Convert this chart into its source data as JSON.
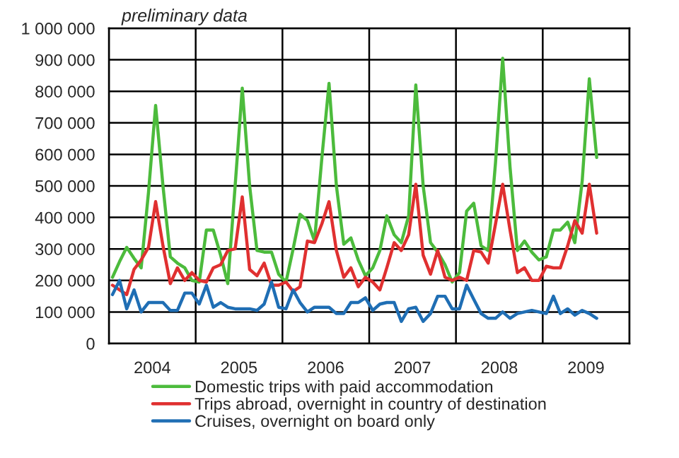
{
  "chart_data": {
    "type": "line",
    "annotations": [
      "preliminary data"
    ],
    "x": [
      "2004-01-16",
      "2004-02-15",
      "2004-03-16",
      "2004-04-16",
      "2004-05-16",
      "2004-06-16",
      "2004-07-16",
      "2004-08-16",
      "2004-09-16",
      "2004-10-16",
      "2004-11-16",
      "2004-12-16",
      "2005-01-16",
      "2005-02-15",
      "2005-03-16",
      "2005-04-16",
      "2005-05-16",
      "2005-06-16",
      "2005-07-16",
      "2005-08-16",
      "2005-09-16",
      "2005-10-16",
      "2005-11-16",
      "2005-12-16",
      "2006-01-16",
      "2006-02-15",
      "2006-03-16",
      "2006-04-16",
      "2006-05-16",
      "2006-06-16",
      "2006-07-16",
      "2006-08-16",
      "2006-09-16",
      "2006-10-16",
      "2006-11-16",
      "2006-12-16",
      "2007-01-16",
      "2007-02-15",
      "2007-03-16",
      "2007-04-16",
      "2007-05-16",
      "2007-06-16",
      "2007-07-16",
      "2007-08-16",
      "2007-09-16",
      "2007-10-16",
      "2007-11-16",
      "2007-12-16",
      "2008-01-16",
      "2008-02-15",
      "2008-03-16",
      "2008-04-16",
      "2008-05-16",
      "2008-06-16",
      "2008-07-16",
      "2008-08-16",
      "2008-09-16",
      "2008-10-16",
      "2008-11-16",
      "2008-12-16",
      "2009-01-16",
      "2009-02-15",
      "2009-03-16",
      "2009-04-16",
      "2009-05-16",
      "2009-06-16",
      "2009-07-16",
      "2009-08-16"
    ],
    "series": [
      {
        "name": "Domestic trips with paid accommodation",
        "color": "#4cbb3c",
        "values": [
          210000,
          260000,
          305000,
          270000,
          240000,
          480000,
          755000,
          500000,
          275000,
          255000,
          240000,
          200000,
          195000,
          360000,
          360000,
          280000,
          190000,
          500000,
          810000,
          500000,
          295000,
          290000,
          290000,
          220000,
          195000,
          300000,
          410000,
          390000,
          325000,
          590000,
          825000,
          500000,
          315000,
          335000,
          265000,
          215000,
          240000,
          295000,
          405000,
          345000,
          320000,
          405000,
          820000,
          500000,
          320000,
          290000,
          250000,
          195000,
          225000,
          420000,
          445000,
          310000,
          295000,
          575000,
          905000,
          560000,
          295000,
          325000,
          290000,
          265000,
          275000,
          360000,
          360000,
          385000,
          320000,
          515000,
          840000,
          590000
        ]
      },
      {
        "name": "Trips abroad, overnight in country of destination",
        "color": "#e03030",
        "values": [
          185000,
          170000,
          155000,
          235000,
          265000,
          305000,
          450000,
          310000,
          190000,
          240000,
          200000,
          225000,
          200000,
          195000,
          240000,
          250000,
          295000,
          300000,
          465000,
          235000,
          215000,
          255000,
          185000,
          185000,
          195000,
          165000,
          180000,
          325000,
          320000,
          380000,
          450000,
          295000,
          210000,
          240000,
          180000,
          210000,
          195000,
          170000,
          240000,
          320000,
          295000,
          345000,
          505000,
          280000,
          220000,
          295000,
          210000,
          200000,
          210000,
          200000,
          295000,
          290000,
          255000,
          380000,
          505000,
          360000,
          225000,
          240000,
          200000,
          200000,
          245000,
          240000,
          240000,
          310000,
          390000,
          350000,
          505000,
          350000
        ]
      },
      {
        "name": "Cruises, overnight on board only",
        "color": "#1f6eb4",
        "values": [
          155000,
          200000,
          110000,
          170000,
          100000,
          130000,
          130000,
          130000,
          105000,
          105000,
          160000,
          160000,
          125000,
          185000,
          115000,
          130000,
          115000,
          110000,
          110000,
          110000,
          105000,
          125000,
          195000,
          115000,
          110000,
          170000,
          130000,
          100000,
          115000,
          115000,
          115000,
          95000,
          95000,
          130000,
          130000,
          145000,
          105000,
          125000,
          130000,
          130000,
          70000,
          110000,
          115000,
          70000,
          95000,
          150000,
          150000,
          110000,
          110000,
          185000,
          140000,
          95000,
          80000,
          80000,
          100000,
          80000,
          95000,
          100000,
          105000,
          100000,
          95000,
          150000,
          95000,
          110000,
          90000,
          105000,
          95000,
          80000
        ]
      }
    ],
    "xlim": [
      "2004",
      "2010"
    ],
    "xticks": [
      {
        "value": "2004",
        "label": null
      },
      {
        "value": "2005",
        "label": null
      },
      {
        "value": "2006",
        "label": null
      },
      {
        "value": "2007",
        "label": null
      },
      {
        "value": "2008",
        "label": null
      },
      {
        "value": "2009",
        "label": null
      },
      {
        "value": "2010",
        "label": null
      },
      {
        "value": "2004-07-02",
        "label": "2004"
      },
      {
        "value": "2005-07-02",
        "label": "2005"
      },
      {
        "value": "2006-07-02",
        "label": "2006"
      },
      {
        "value": "2007-07-02",
        "label": "2007"
      },
      {
        "value": "2008-07-02",
        "label": "2008"
      },
      {
        "value": "2009-07-02",
        "label": "2009"
      }
    ],
    "ylim": [
      0,
      1000000
    ],
    "yticks": [
      0,
      {
        "value": 100000,
        "label": "100 000"
      },
      {
        "value": 200000,
        "label": "200 000"
      },
      {
        "value": 300000,
        "label": "300 000"
      },
      {
        "value": 400000,
        "label": "400 000"
      },
      {
        "value": 500000,
        "label": "500 000"
      },
      {
        "value": 600000,
        "label": "600 000"
      },
      {
        "value": 700000,
        "label": "700 000"
      },
      {
        "value": 800000,
        "label": "800 000"
      },
      {
        "value": 900000,
        "label": "900 000"
      },
      {
        "value": 1000000,
        "label": "1 000 000"
      }
    ],
    "grid": true,
    "legend": "bottom",
    "line_style": "solid",
    "marker": "none"
  }
}
